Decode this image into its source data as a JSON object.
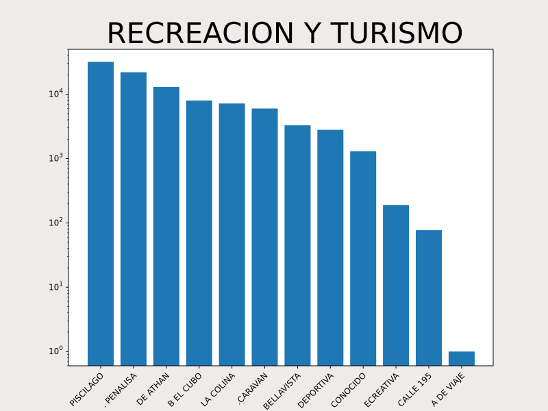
{
  "chart_data": {
    "type": "bar",
    "title": "RECREACION Y TURISMO",
    "xlabel": "",
    "ylabel": "",
    "yscale": "log",
    "ylim": [
      0.6,
      50000
    ],
    "y_ticks": [
      {
        "value": 1,
        "base": "10",
        "exp": "0"
      },
      {
        "value": 10,
        "base": "10",
        "exp": "1"
      },
      {
        "value": 100,
        "base": "10",
        "exp": "2"
      },
      {
        "value": 1000,
        "base": "10",
        "exp": "3"
      },
      {
        "value": 10000,
        "base": "10",
        "exp": "4"
      }
    ],
    "bar_color": "#1f77b4",
    "grid": false,
    "categories": [
      "PISCILAGO",
      ". PENALISA",
      "DE ATHAN",
      "B EL CUBO",
      "LA COLINA",
      ".CARAVAN",
      "BELLAVISTA",
      "DEPORTIVA",
      "CONOCIDO",
      "ECREATIVA",
      "CALLE 195",
      "A DE VIAJE"
    ],
    "values": [
      32000,
      22000,
      13000,
      8000,
      7200,
      6000,
      3300,
      2800,
      1300,
      190,
      77,
      1
    ]
  }
}
